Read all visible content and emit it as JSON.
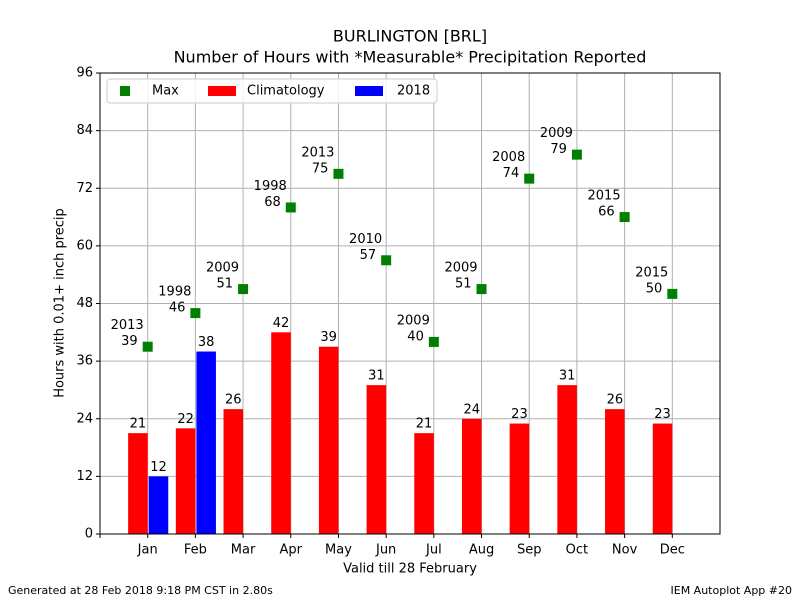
{
  "chart_data": {
    "type": "bar",
    "title": "BURLINGTON [BRL]",
    "subtitle": "Number of Hours with *Measurable* Precipitation Reported",
    "ylabel": "Hours with 0.01+ inch precip",
    "xlabel": "Valid till 28 February",
    "categories": [
      "Jan",
      "Feb",
      "Mar",
      "Apr",
      "May",
      "Jun",
      "Jul",
      "Aug",
      "Sep",
      "Oct",
      "Nov",
      "Dec"
    ],
    "series": [
      {
        "name": "Max",
        "color": "#008000",
        "values": [
          39,
          46,
          51,
          68,
          75,
          57,
          40,
          51,
          74,
          79,
          66,
          50
        ],
        "years": [
          "2013",
          "1998",
          "2009",
          "1998",
          "2013",
          "2010",
          "2009",
          "2009",
          "2008",
          "2009",
          "2015",
          "2015"
        ]
      },
      {
        "name": "Climatology",
        "color": "#ff0000",
        "values": [
          21,
          22,
          26,
          42,
          39,
          31,
          21,
          24,
          23,
          31,
          26,
          23
        ]
      },
      {
        "name": "2018",
        "color": "#0000ff",
        "values": [
          12,
          38,
          null,
          null,
          null,
          null,
          null,
          null,
          null,
          null,
          null,
          null
        ]
      }
    ],
    "ylim": [
      0,
      96
    ],
    "yticks": [
      0,
      12,
      24,
      36,
      48,
      60,
      72,
      84,
      96
    ],
    "grid": true,
    "legend": "top-left",
    "footer_left": "Generated at 28 Feb 2018 9:18 PM CST in 2.80s",
    "footer_right": "IEM Autoplot App #20"
  }
}
